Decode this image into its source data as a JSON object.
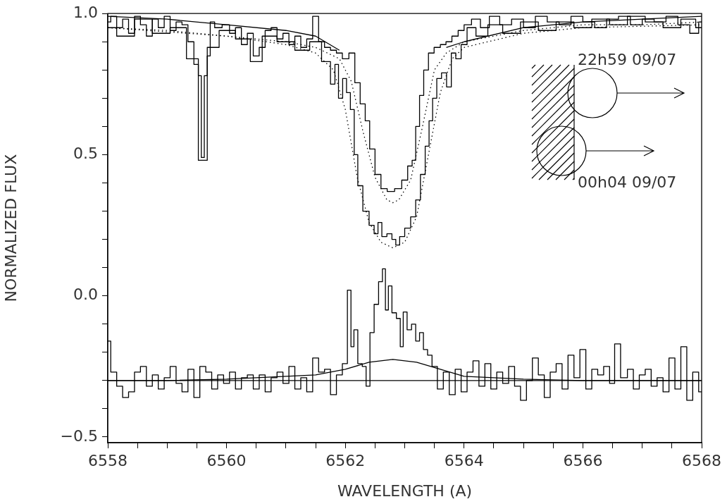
{
  "chart_data": {
    "type": "step",
    "xlabel": "WAVELENGTH (A)",
    "ylabel": "NORMALIZED FLUX",
    "xlim": [
      6558,
      6568
    ],
    "ylim": [
      -0.52,
      1.0
    ],
    "xticks": [
      6558,
      {
        "value": 6558.5,
        "label": null
      },
      {
        "value": 6559,
        "label": null
      },
      {
        "value": 6559.5,
        "label": null
      },
      6560,
      {
        "value": 6560.5,
        "label": null
      },
      {
        "value": 6561,
        "label": null
      },
      {
        "value": 6561.5,
        "label": null
      },
      6562,
      {
        "value": 6562.5,
        "label": null
      },
      {
        "value": 6563,
        "label": null
      },
      {
        "value": 6563.5,
        "label": null
      },
      6564,
      {
        "value": 6564.5,
        "label": null
      },
      {
        "value": 6565,
        "label": null
      },
      {
        "value": 6565.5,
        "label": null
      },
      6566,
      {
        "value": 6566.5,
        "label": null
      },
      {
        "value": 6567,
        "label": null
      },
      {
        "value": 6567.5,
        "label": null
      },
      6568
    ],
    "yticks": [
      {
        "value": -0.5,
        "label": "−0.5"
      },
      {
        "value": -0.4,
        "label": null
      },
      {
        "value": -0.3,
        "label": null
      },
      {
        "value": -0.2,
        "label": null
      },
      {
        "value": -0.1,
        "label": null
      },
      {
        "value": 0,
        "label": "0.0"
      },
      {
        "value": 0.1,
        "label": null
      },
      {
        "value": 0.2,
        "label": null
      },
      {
        "value": 0.3,
        "label": null
      },
      {
        "value": 0.4,
        "label": null
      },
      {
        "value": 0.5,
        "label": "0.5"
      },
      {
        "value": 0.6,
        "label": null
      },
      {
        "value": 0.7,
        "label": null
      },
      {
        "value": 0.8,
        "label": null
      },
      {
        "value": 0.9,
        "label": null
      },
      {
        "value": 1.0,
        "label": "1.0"
      }
    ],
    "grid": false,
    "legend": false,
    "ref_lines": [
      {
        "axis": "y",
        "value": -0.3,
        "color": "#000000"
      }
    ],
    "annotations": [
      "22h59 09/07",
      "00h04 09/07"
    ],
    "series": [
      {
        "color": "#000000",
        "line_style": "solid",
        "x": [
          6558.0,
          6558.1,
          6558.2,
          6558.3,
          6558.4,
          6558.5,
          6558.6,
          6558.7,
          6558.8,
          6558.9,
          6559.0,
          6559.1,
          6559.2,
          6559.3,
          6559.4,
          6559.5,
          6559.55,
          6559.6,
          6559.65,
          6559.7,
          6559.75,
          6559.85,
          6560.0,
          6560.1,
          6560.2,
          6560.3,
          6560.4,
          6560.5,
          6560.6,
          6560.7,
          6560.8,
          6560.9,
          6561.0,
          6561.1,
          6561.2,
          6561.3,
          6561.4,
          6561.5,
          6561.6,
          6561.7,
          6561.8,
          6561.9,
          6562.0,
          6562.12,
          6562.2,
          6562.3,
          6562.37,
          6562.45,
          6562.55,
          6562.65,
          6562.76,
          6562.9,
          6563.0,
          6563.1,
          6563.15,
          6563.22,
          6563.28,
          6563.36,
          6563.44,
          6563.55,
          6563.65,
          6563.74,
          6563.85,
          6563.95,
          6564.05,
          6564.2,
          6564.35,
          6564.5,
          6564.7,
          6564.9,
          6565.1,
          6565.3,
          6565.5,
          6565.7,
          6565.9,
          6566.1,
          6566.3,
          6566.5,
          6566.7,
          6566.9,
          6567.1,
          6567.3,
          6567.5,
          6567.7,
          6567.9,
          6568.0
        ],
        "values": [
          0.97,
          0.99,
          0.95,
          0.98,
          0.93,
          0.99,
          0.96,
          0.92,
          0.98,
          0.95,
          0.99,
          0.94,
          0.97,
          0.96,
          0.9,
          0.82,
          0.78,
          0.49,
          0.78,
          0.85,
          0.97,
          0.95,
          0.96,
          0.93,
          0.95,
          0.89,
          0.93,
          0.85,
          0.88,
          0.94,
          0.95,
          0.91,
          0.93,
          0.89,
          0.92,
          0.88,
          0.91,
          0.99,
          0.9,
          0.88,
          0.87,
          0.86,
          0.84,
          0.86,
          0.755,
          0.68,
          0.62,
          0.52,
          0.43,
          0.38,
          0.37,
          0.38,
          0.41,
          0.46,
          0.48,
          0.6,
          0.71,
          0.8,
          0.86,
          0.88,
          0.89,
          0.9,
          0.92,
          0.94,
          0.96,
          0.98,
          0.95,
          0.99,
          0.96,
          0.98,
          0.95,
          0.99,
          0.97,
          0.96,
          0.99,
          0.97,
          0.95,
          0.98,
          0.99,
          0.96,
          0.98,
          0.97,
          0.99,
          0.96,
          0.93,
          0.97
        ]
      },
      {
        "color": "#000000",
        "line_style": "solid",
        "x": [
          6558,
          6558.3,
          6558.6,
          6558.9,
          6559.2,
          6559.45,
          6559.6,
          6559.75,
          6560.0,
          6560.3,
          6560.5,
          6560.7,
          6561.0,
          6561.3,
          6561.5,
          6561.7,
          6561.8,
          6561.85,
          6561.92,
          6561.99,
          6562.05,
          6562.12,
          6562.18,
          6562.24,
          6562.35,
          6562.45,
          6562.52,
          6562.58,
          6562.65,
          6562.75,
          6562.82,
          6562.88,
          6562.95,
          6563.05,
          6563.15,
          6563.22,
          6563.31,
          6563.38,
          6563.44,
          6563.5,
          6563.58,
          6563.66,
          6563.75,
          6563.82,
          6563.9,
          6564.0,
          6564.1,
          6564.3,
          6564.5,
          6564.8,
          6565.1,
          6565.4,
          6565.7,
          6566.0,
          6566.3,
          6566.6,
          6566.9,
          6567.2,
          6567.5,
          6567.8,
          6568
        ],
        "values": [
          0.95,
          0.92,
          0.98,
          0.93,
          0.95,
          0.84,
          0.48,
          0.88,
          0.94,
          0.91,
          0.83,
          0.92,
          0.9,
          0.87,
          0.9,
          0.83,
          0.75,
          0.82,
          0.7,
          0.77,
          0.72,
          0.66,
          0.5,
          0.39,
          0.3,
          0.25,
          0.22,
          0.26,
          0.21,
          0.22,
          0.2,
          0.18,
          0.21,
          0.24,
          0.28,
          0.34,
          0.43,
          0.53,
          0.62,
          0.7,
          0.77,
          0.79,
          0.74,
          0.86,
          0.84,
          0.89,
          0.95,
          0.92,
          0.96,
          0.93,
          0.97,
          0.94,
          0.97,
          0.95,
          0.98,
          0.96,
          0.99,
          0.97,
          0.95,
          0.98,
          0.95
        ]
      },
      {
        "type": "line",
        "color": "#000000",
        "line_style": "dotted",
        "x": [
          6558,
          6559,
          6560,
          6561,
          6561.5,
          6561.9,
          6562.1,
          6562.3,
          6562.5,
          6562.7,
          6562.8,
          6562.9,
          6563.1,
          6563.3,
          6563.5,
          6563.7,
          6564,
          6565,
          6566,
          6567,
          6568
        ],
        "values": [
          0.95,
          0.94,
          0.92,
          0.9,
          0.88,
          0.84,
          0.76,
          0.58,
          0.42,
          0.34,
          0.33,
          0.34,
          0.41,
          0.6,
          0.8,
          0.86,
          0.9,
          0.94,
          0.96,
          0.96,
          0.97
        ]
      },
      {
        "type": "line",
        "color": "#000000",
        "line_style": "dotted",
        "x": [
          6558,
          6560,
          6561,
          6561.5,
          6561.8,
          6562.0,
          6562.2,
          6562.4,
          6562.6,
          6562.8,
          6563.0,
          6563.2,
          6563.4,
          6563.6,
          6563.8,
          6564,
          6565,
          6566,
          6568
        ],
        "values": [
          0.95,
          0.92,
          0.89,
          0.86,
          0.8,
          0.66,
          0.42,
          0.26,
          0.19,
          0.17,
          0.19,
          0.28,
          0.5,
          0.72,
          0.84,
          0.88,
          0.93,
          0.95,
          0.96
        ]
      },
      {
        "type": "line",
        "color": "#000000",
        "line_style": "solid",
        "x": [
          6558,
          6559,
          6560,
          6561,
          6561.5,
          6561.9,
          6562.5,
          6563.7,
          6564,
          6565,
          6566,
          6567,
          6568
        ],
        "values": [
          0.99,
          0.98,
          0.96,
          0.94,
          0.92,
          0.87,
          null,
          0.88,
          0.9,
          0.95,
          0.97,
          0.98,
          0.99
        ]
      },
      {
        "color": "#000000",
        "line_style": "solid",
        "x": [
          6558.0,
          6558.1,
          6558.2,
          6558.3,
          6558.4,
          6558.5,
          6558.6,
          6558.7,
          6558.8,
          6558.9,
          6559.0,
          6559.1,
          6559.2,
          6559.3,
          6559.4,
          6559.5,
          6559.6,
          6559.7,
          6559.8,
          6559.9,
          6560.0,
          6560.1,
          6560.2,
          6560.3,
          6560.4,
          6560.5,
          6560.6,
          6560.7,
          6560.8,
          6560.9,
          6561.0,
          6561.1,
          6561.2,
          6561.3,
          6561.4,
          6561.5,
          6561.6,
          6561.7,
          6561.8,
          6561.9,
          6562.0,
          6562.07,
          6562.12,
          6562.17,
          6562.25,
          6562.32,
          6562.38,
          6562.45,
          6562.52,
          6562.6,
          6562.65,
          6562.7,
          6562.75,
          6562.82,
          6562.9,
          6562.95,
          6563.0,
          6563.08,
          6563.15,
          6563.22,
          6563.28,
          6563.35,
          6563.42,
          6563.5,
          6563.6,
          6563.7,
          6563.8,
          6563.9,
          6564.0,
          6564.1,
          6564.2,
          6564.3,
          6564.4,
          6564.5,
          6564.6,
          6564.7,
          6564.8,
          6564.9,
          6565.0,
          6565.1,
          6565.2,
          6565.3,
          6565.4,
          6565.5,
          6565.6,
          6565.7,
          6565.8,
          6565.9,
          6566.0,
          6566.1,
          6566.2,
          6566.3,
          6566.4,
          6566.5,
          6566.57,
          6566.7,
          6566.8,
          6566.9,
          6567.0,
          6567.1,
          6567.2,
          6567.3,
          6567.4,
          6567.5,
          6567.6,
          6567.7,
          6567.8,
          6567.9,
          6568.0
        ],
        "values": [
          -0.16,
          -0.27,
          -0.32,
          -0.36,
          -0.34,
          -0.27,
          -0.25,
          -0.32,
          -0.28,
          -0.33,
          -0.29,
          -0.25,
          -0.31,
          -0.34,
          -0.26,
          -0.36,
          -0.25,
          -0.27,
          -0.33,
          -0.28,
          -0.31,
          -0.27,
          -0.33,
          -0.29,
          -0.28,
          -0.33,
          -0.28,
          -0.34,
          -0.29,
          -0.27,
          -0.31,
          -0.25,
          -0.33,
          -0.29,
          -0.34,
          -0.22,
          -0.27,
          -0.26,
          -0.35,
          -0.28,
          -0.24,
          0.02,
          -0.18,
          -0.12,
          -0.24,
          -0.25,
          -0.32,
          -0.13,
          -0.03,
          0.05,
          0.096,
          -0.05,
          0.035,
          -0.06,
          -0.08,
          -0.18,
          -0.057,
          -0.12,
          -0.1,
          -0.16,
          -0.13,
          -0.19,
          -0.21,
          -0.25,
          -0.33,
          -0.27,
          -0.35,
          -0.26,
          -0.34,
          -0.27,
          -0.23,
          -0.32,
          -0.24,
          -0.33,
          -0.27,
          -0.31,
          -0.25,
          -0.32,
          -0.37,
          -0.3,
          -0.22,
          -0.28,
          -0.36,
          -0.27,
          -0.24,
          -0.33,
          -0.21,
          -0.29,
          -0.19,
          -0.33,
          -0.26,
          -0.28,
          -0.25,
          -0.31,
          -0.17,
          -0.29,
          -0.26,
          -0.33,
          -0.28,
          -0.26,
          -0.32,
          -0.29,
          -0.34,
          -0.22,
          -0.33,
          -0.18,
          -0.37,
          -0.27,
          -0.34
        ]
      },
      {
        "type": "line",
        "color": "#000000",
        "line_style": "solid",
        "x": [
          6558,
          6559,
          6560,
          6561,
          6561.5,
          6562,
          6562.4,
          6562.8,
          6563.2,
          6563.6,
          6564,
          6565,
          6566,
          6567,
          6568
        ],
        "values": [
          -0.3,
          -0.3,
          -0.295,
          -0.285,
          -0.28,
          -0.26,
          -0.235,
          -0.225,
          -0.235,
          -0.26,
          -0.285,
          -0.295,
          -0.3,
          -0.3,
          -0.3
        ]
      }
    ]
  }
}
